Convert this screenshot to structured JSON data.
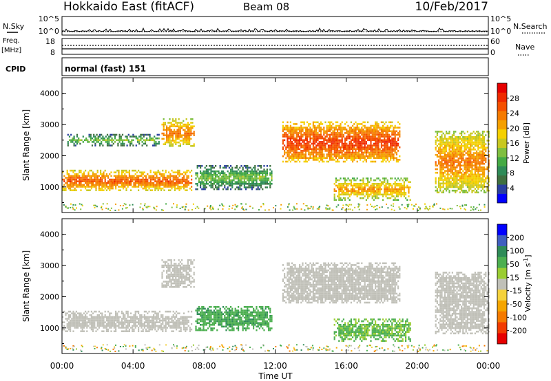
{
  "header": {
    "radar": "Hokkaido East (fitACF)",
    "beam": "Beam 08",
    "date": "10/Feb/2017"
  },
  "noise_panel": {
    "left_label": "N.Sky",
    "right_label": "N.Search",
    "left_ticks": [
      "10^5",
      "10^0"
    ],
    "right_ticks": [
      "10^5",
      "10^0"
    ]
  },
  "freq_panel": {
    "left_label_1": "Freq.",
    "left_label_2": "[MHz]",
    "right_label": "Nave",
    "left_ticks": [
      "18",
      "8"
    ],
    "right_ticks": [
      "60",
      "0"
    ]
  },
  "cpid_panel": {
    "label": "CPID",
    "value": "normal (fast) 151"
  },
  "colors": {
    "power_scale": [
      "#0000ff",
      "#2a3f9f",
      "#3f6f3f",
      "#2e8b57",
      "#44aa44",
      "#7fbf3f",
      "#c8c820",
      "#f5d000",
      "#f5a000",
      "#f57a00",
      "#f55000",
      "#ef2a00",
      "#e60000"
    ],
    "velocity_scale": [
      "#e60000",
      "#f23a00",
      "#f57a00",
      "#f5a500",
      "#f5d23c",
      "#c0c0b8",
      "#9acd32",
      "#4caf50",
      "#2e8b57",
      "#3f5fbf",
      "#0000ff"
    ]
  },
  "chart_data": [
    {
      "type": "heatmap",
      "title": "Power",
      "xlabel": "Time UT",
      "ylabel": "Slant Range [km]",
      "xlim": [
        0,
        24
      ],
      "ylim": [
        180,
        4500
      ],
      "x_ticks": [
        "00:00",
        "04:00",
        "08:00",
        "12:00",
        "16:00",
        "20:00",
        "00:00"
      ],
      "y_ticks": [
        1000,
        2000,
        3000,
        4000
      ],
      "colorbar": {
        "label": "Power [dB]",
        "range": [
          0,
          32
        ],
        "ticks": [
          4,
          8,
          12,
          16,
          20,
          24,
          28
        ]
      },
      "echo_regions": [
        {
          "t_start": 0.0,
          "t_end": 7.3,
          "range_start": 900,
          "range_end": 1550,
          "power_db": 26
        },
        {
          "t_start": 0.3,
          "t_end": 5.5,
          "range_start": 2350,
          "range_end": 2700,
          "power_db": 14
        },
        {
          "t_start": 5.6,
          "t_end": 7.4,
          "range_start": 2300,
          "range_end": 3200,
          "power_db": 24
        },
        {
          "t_start": 7.5,
          "t_end": 11.8,
          "range_start": 950,
          "range_end": 1700,
          "power_db": 14
        },
        {
          "t_start": 12.4,
          "t_end": 19.0,
          "range_start": 1800,
          "range_end": 3100,
          "power_db": 28
        },
        {
          "t_start": 15.3,
          "t_end": 19.6,
          "range_start": 600,
          "range_end": 1300,
          "power_db": 22
        },
        {
          "t_start": 21.0,
          "t_end": 24.0,
          "range_start": 850,
          "range_end": 2800,
          "power_db": 24
        }
      ]
    },
    {
      "type": "heatmap",
      "title": "Velocity",
      "xlabel": "Time UT",
      "ylabel": "Slant Range [km]",
      "xlim": [
        0,
        24
      ],
      "ylim": [
        180,
        4500
      ],
      "x_ticks": [
        "00:00",
        "04:00",
        "08:00",
        "12:00",
        "16:00",
        "20:00",
        "00:00"
      ],
      "y_ticks": [
        1000,
        2000,
        3000,
        4000
      ],
      "colorbar": {
        "label": "Velocity [m s^-1]",
        "ticks": [
          200,
          100,
          50,
          15,
          -15,
          -50,
          -100,
          -200
        ]
      },
      "echo_regions": [
        {
          "t_start": 0.0,
          "t_end": 7.3,
          "range_start": 900,
          "range_end": 1550,
          "velocity": 0
        },
        {
          "t_start": 5.6,
          "t_end": 7.4,
          "range_start": 2300,
          "range_end": 3200,
          "velocity": 0
        },
        {
          "t_start": 7.5,
          "t_end": 11.8,
          "range_start": 950,
          "range_end": 1700,
          "velocity": 40
        },
        {
          "t_start": 12.4,
          "t_end": 19.0,
          "range_start": 1800,
          "range_end": 3100,
          "velocity": 0
        },
        {
          "t_start": 15.3,
          "t_end": 19.6,
          "range_start": 600,
          "range_end": 1300,
          "velocity": 30
        },
        {
          "t_start": 21.0,
          "t_end": 24.0,
          "range_start": 850,
          "range_end": 2800,
          "velocity": 0
        }
      ]
    }
  ]
}
